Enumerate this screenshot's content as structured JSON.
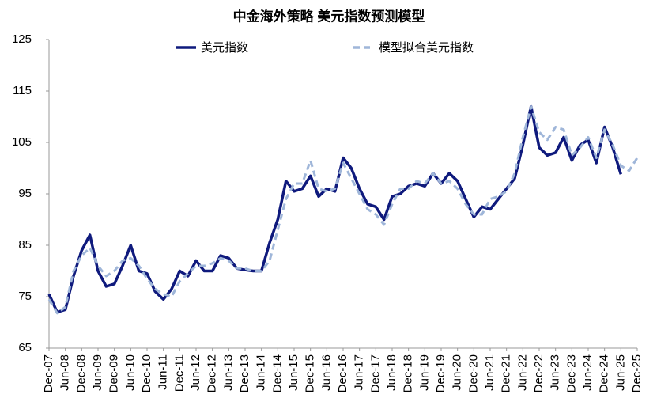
{
  "chart_data": {
    "type": "line",
    "title": "中金海外策略 美元指数预测模型",
    "categories": [
      "Dec-07",
      null,
      "Jun-08",
      null,
      "Dec-08",
      null,
      "Jun-09",
      null,
      "Dec-09",
      null,
      "Jun-10",
      null,
      "Dec-10",
      null,
      "Jun-11",
      null,
      "Dec-11",
      null,
      "Jun-12",
      null,
      "Dec-12",
      null,
      "Jun-13",
      null,
      "Dec-13",
      null,
      "Jun-14",
      null,
      "Dec-14",
      null,
      "Jun-15",
      null,
      "Dec-15",
      null,
      "Jun-16",
      null,
      "Dec-16",
      null,
      "Jun-17",
      null,
      "Dec-17",
      null,
      "Jun-18",
      null,
      "Dec-18",
      null,
      "Jun-19",
      null,
      "Dec-19",
      null,
      "Jun-20",
      null,
      "Dec-20",
      null,
      "Jun-21",
      null,
      "Dec-21",
      null,
      "Jun-22",
      null,
      "Dec-22",
      null,
      "Jun-23",
      null,
      "Dec-23",
      null,
      "Jun-24",
      null,
      "Dec-24",
      null,
      "Jun-25",
      null,
      "Dec-25"
    ],
    "series": [
      {
        "name": "美元指数",
        "color": "#0f1a7d",
        "dashed": false,
        "values": [
          75.5,
          72,
          72.5,
          79,
          84,
          87,
          80,
          77,
          77.5,
          81,
          85,
          80,
          79.5,
          76,
          74.5,
          76.5,
          80,
          79,
          82,
          80,
          80,
          83,
          82.5,
          80.5,
          80.2,
          80,
          80,
          85.5,
          90,
          97.5,
          95.5,
          96,
          98.5,
          94.5,
          96,
          95.5,
          102,
          100,
          96,
          93,
          92.5,
          90,
          94.5,
          95,
          96.5,
          97,
          96.5,
          99,
          97,
          99,
          97.5,
          94,
          90.5,
          92.5,
          92,
          94,
          96,
          98,
          104.5,
          112,
          104,
          102.5,
          103,
          106,
          101.5,
          104.5,
          105.5,
          101,
          108,
          104,
          98.8,
          null,
          null
        ]
      },
      {
        "name": "模型拟合美元指数",
        "color": "#9fb6d9",
        "dashed": true,
        "values": [
          74.5,
          71.8,
          73,
          80,
          83,
          84.5,
          81,
          79,
          80,
          82,
          82.5,
          81,
          78.5,
          76.5,
          75.5,
          75,
          78,
          79.5,
          81,
          81,
          81.5,
          82.5,
          82,
          80.5,
          80.5,
          80,
          80,
          82,
          88,
          94,
          97,
          97,
          101.5,
          96,
          95.5,
          96,
          101,
          98,
          95,
          92,
          91,
          89,
          93,
          96,
          96,
          97.5,
          97,
          99,
          97,
          97.5,
          96,
          93,
          91,
          91,
          94,
          94.5,
          95.5,
          99,
          106,
          112,
          107,
          105.5,
          108,
          107.5,
          102.5,
          104,
          106,
          102,
          107.5,
          104.5,
          100.5,
          99.5,
          102
        ]
      }
    ],
    "ylim": [
      65,
      125
    ],
    "yticks": [
      65,
      75,
      85,
      95,
      105,
      115,
      125
    ],
    "grid": false,
    "legend": "top"
  }
}
